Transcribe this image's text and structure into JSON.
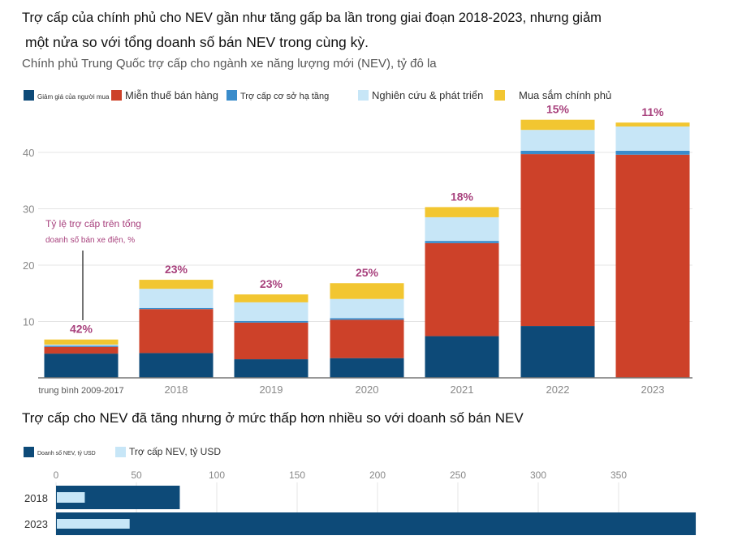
{
  "headline_line1": "Trợ cấp của chính phủ cho NEV gần như tăng gấp ba lần trong giai đoạn 2018-2023, nhưng giảm",
  "headline_line2": "một nửa so với tổng doanh số bán NEV trong cùng kỳ.",
  "chart1_subtitle": "Chính phủ Trung Quốc trợ cấp cho ngành xe năng lượng mới (NEV), tỷ đô la",
  "chart2_title": "Trợ cấp cho NEV đã tăng nhưng ở mức thấp hơn nhiều so với doanh số bán NEV",
  "colors": {
    "purchase_rebate": "#0d4a78",
    "tax_exemption": "#cd4129",
    "infrastructure": "#3a8ccb",
    "rnd": "#c7e6f7",
    "procurement": "#f2c631",
    "pct_label": "#a8417d",
    "annotation": "#a8417d",
    "axis_text": "#888888",
    "grid": "#e4e4e4"
  },
  "chart_data": [
    {
      "type": "bar",
      "stacked": true,
      "categories": [
        "trung bình 2009-2017",
        "2018",
        "2019",
        "2020",
        "2021",
        "2022",
        "2023"
      ],
      "series": [
        {
          "name": "Giảm giá của người mua",
          "color_key": "purchase_rebate",
          "values": [
            4.3,
            4.4,
            3.3,
            3.5,
            7.4,
            9.2,
            0
          ]
        },
        {
          "name": "Miễn thuế bán hàng",
          "color_key": "tax_exemption",
          "values": [
            1.2,
            7.8,
            6.5,
            6.8,
            16.5,
            30.5,
            39.6
          ]
        },
        {
          "name": "Trợ cấp cơ sở hạ tầng",
          "color_key": "infrastructure",
          "values": [
            0.2,
            0.2,
            0.3,
            0.3,
            0.4,
            0.6,
            0.7
          ]
        },
        {
          "name": "Nghiên cứu & phát triển",
          "color_key": "rnd",
          "values": [
            0.2,
            3.4,
            3.3,
            3.4,
            4.2,
            3.7,
            4.3
          ]
        },
        {
          "name": "Mua sắm chính phủ",
          "color_key": "procurement",
          "values": [
            0.9,
            1.6,
            1.4,
            2.8,
            1.8,
            1.8,
            0.7
          ]
        }
      ],
      "bar_labels": [
        "42%",
        "23%",
        "23%",
        "25%",
        "18%",
        "15%",
        "11%"
      ],
      "yticks": [
        10,
        20,
        30,
        40
      ],
      "ylim": [
        0,
        46
      ],
      "grid": true,
      "legend_position": "top",
      "annotation_line1": "Tỷ lệ trợ cấp trên tổng",
      "annotation_line2": "doanh số bán xe điện, %"
    },
    {
      "type": "bar",
      "orientation": "horizontal",
      "overlaid": true,
      "categories": [
        "2018",
        "2023"
      ],
      "series": [
        {
          "name": "Doanh số NEV, tỷ USD",
          "color_key": "purchase_rebate",
          "values": [
            77,
            398
          ]
        },
        {
          "name": "Trợ cấp NEV, tỷ USD",
          "color_key": "rnd",
          "values": [
            17.4,
            45.3
          ]
        }
      ],
      "xticks": [
        0,
        50,
        100,
        150,
        200,
        250,
        300,
        350
      ],
      "xlim": [
        0,
        398
      ],
      "grid": true,
      "legend_position": "top"
    }
  ]
}
